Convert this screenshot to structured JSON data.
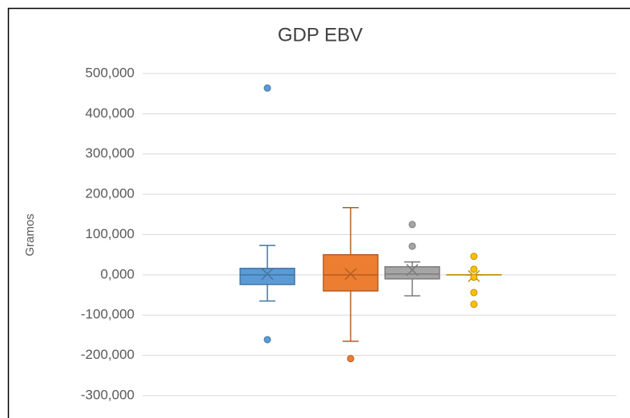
{
  "chart_data": {
    "type": "box",
    "title": "GDP EBV",
    "y_label": "Gramos",
    "ylim": [
      -300,
      500
    ],
    "yticks": [
      {
        "value": -300,
        "label": "-300,000"
      },
      {
        "value": -200,
        "label": "-200,000"
      },
      {
        "value": -100,
        "label": "-100,000"
      },
      {
        "value": 0,
        "label": "0,000"
      },
      {
        "value": 100,
        "label": "100,000"
      },
      {
        "value": 200,
        "label": "200,000"
      },
      {
        "value": 300,
        "label": "300,000"
      },
      {
        "value": 400,
        "label": "400,000"
      },
      {
        "value": 500,
        "label": "500,000"
      }
    ],
    "grid": true,
    "series": [
      {
        "color": "#5b9bd5",
        "min": -65,
        "q1": -24,
        "median": 0,
        "q3": 16,
        "max": 73,
        "mean": 2,
        "outliers": [
          464,
          -161
        ]
      },
      {
        "color": "#ed7d31",
        "min": -165,
        "q1": -40,
        "median": 0,
        "q3": 50,
        "max": 167,
        "mean": 2,
        "outliers": [
          -208
        ]
      },
      {
        "color": "#a5a5a5",
        "min": -52,
        "q1": -10,
        "median": 2,
        "q3": 20,
        "max": 32,
        "mean": 12,
        "outliers": [
          125,
          71
        ]
      },
      {
        "color": "#ffc000",
        "min": 0,
        "q1": 0,
        "median": 0,
        "q3": 0,
        "max": 0,
        "mean": -3,
        "outliers": [
          46,
          14,
          -6,
          -44,
          -73
        ]
      }
    ]
  }
}
